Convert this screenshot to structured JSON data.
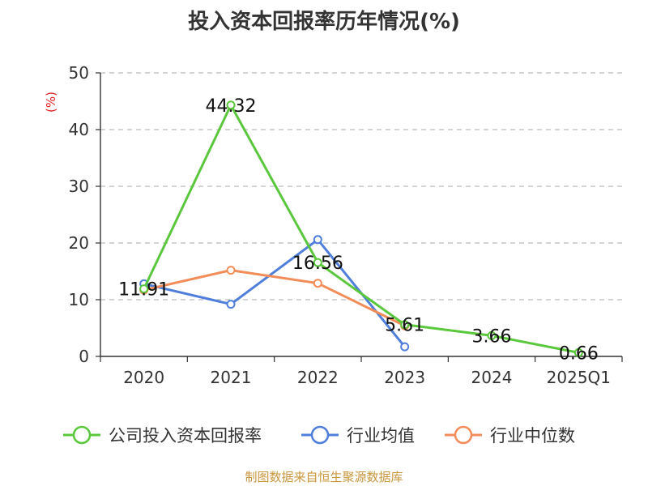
{
  "title": "投入资本回报率历年情况(%)",
  "source": "制图数据来自恒生聚源数据库",
  "chart_data": {
    "type": "line",
    "title": "投入资本回报率历年情况(%)",
    "ylabel": "(%)",
    "xlabel": "",
    "categories": [
      "2020",
      "2021",
      "2022",
      "2023",
      "2024",
      "2025Q1"
    ],
    "ylim": [
      0,
      50
    ],
    "yticks": [
      0,
      10,
      20,
      30,
      40,
      50
    ],
    "grid": true,
    "legend_position": "bottom",
    "series": [
      {
        "name": "公司投入资本回报率",
        "color": "#5ac73c",
        "values": [
          11.91,
          44.32,
          16.56,
          5.61,
          3.66,
          0.66
        ],
        "labels": [
          "11.91",
          "44.32",
          "16.56",
          "5.61",
          "3.66",
          "0.66"
        ]
      },
      {
        "name": "行业均值",
        "color": "#4f7fdb",
        "values": [
          12.8,
          9.2,
          20.6,
          1.7,
          null,
          null
        ]
      },
      {
        "name": "行业中位数",
        "color": "#f28d5a",
        "values": [
          11.7,
          15.2,
          12.9,
          5.4,
          null,
          null
        ]
      }
    ]
  }
}
